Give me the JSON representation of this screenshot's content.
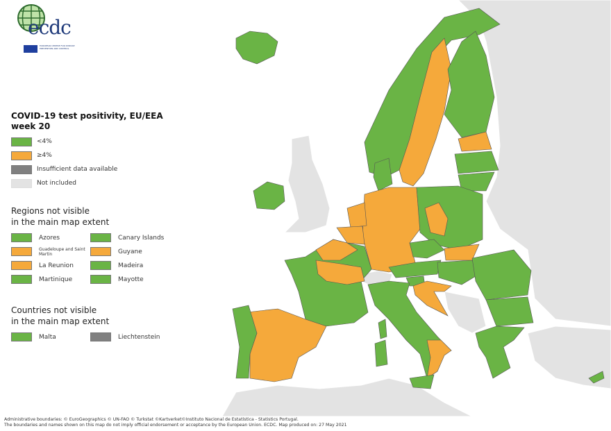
{
  "colors": {
    "below_4": "#6ab445",
    "at_or_above_4": "#f5a93b",
    "insufficient": "#808080",
    "not_included": "#e3e3e3",
    "border": "#4a4a4a"
  },
  "logo": {
    "text": "ecdc",
    "subtitle": "EUROPEAN CENTRE FOR DISEASE PREVENTION AND CONTROL"
  },
  "legend": {
    "title_line1": "COVID-19 test positivity, EU/EEA",
    "title_line2": "week 20",
    "items": [
      {
        "label": "<4%",
        "color": "#6ab445"
      },
      {
        "label": "≥4%",
        "color": "#f5a93b"
      },
      {
        "label": "Insufficient data available",
        "color": "#808080"
      },
      {
        "label": "Not included",
        "color": "#e3e3e3"
      }
    ],
    "regions_title_line1": "Regions not visible",
    "regions_title_line2": "in the main map extent",
    "regions": [
      {
        "label": "Azores",
        "color": "#6ab445"
      },
      {
        "label": "Canary Islands",
        "color": "#6ab445"
      },
      {
        "label": "Guadeloupe and Saint Martin",
        "color": "#f5a93b"
      },
      {
        "label": "Guyane",
        "color": "#f5a93b"
      },
      {
        "label": "La Reunion",
        "color": "#f5a93b"
      },
      {
        "label": "Madeira",
        "color": "#6ab445"
      },
      {
        "label": "Martinique",
        "color": "#6ab445"
      },
      {
        "label": "Mayotte",
        "color": "#6ab445"
      }
    ],
    "countries_title_line1": "Countries not visible",
    "countries_title_line2": "in the main map extent",
    "countries": [
      {
        "label": "Malta",
        "color": "#6ab445"
      },
      {
        "label": "Liechtenstein",
        "color": "#808080"
      }
    ]
  },
  "footer": {
    "line1": "Administrative boundaries: © EuroGeographics © UN-FAO © Turkstat ©Kartverket©Instituto Nacional de Estatística - Statistics Portugal.",
    "line2": "The boundaries and names shown on this map do not imply official endorsement or acceptance by the European Union. ECDC. Map produced on: 27 May 2021"
  }
}
